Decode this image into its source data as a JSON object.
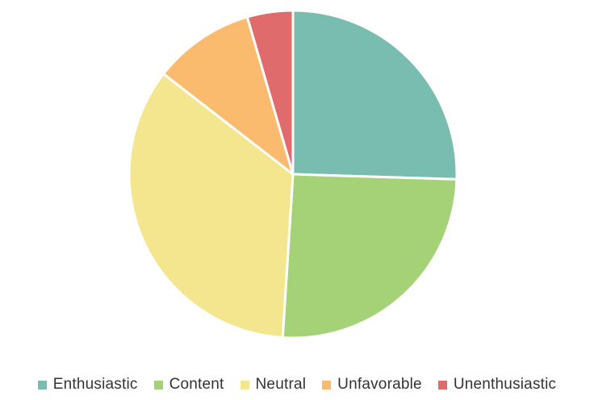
{
  "chart_data": {
    "type": "pie",
    "title": "",
    "start_angle_deg": 0,
    "direction": "clockwise",
    "legend_position": "bottom",
    "categories": [
      "Enthusiastic",
      "Content",
      "Neutral",
      "Unfavorable",
      "Unenthusiastic"
    ],
    "values": [
      25.5,
      25.5,
      34.5,
      10,
      4.5
    ],
    "colors": [
      "#79bcb0",
      "#a5d276",
      "#f3e68f",
      "#fbbb6e",
      "#e06b6c"
    ]
  }
}
